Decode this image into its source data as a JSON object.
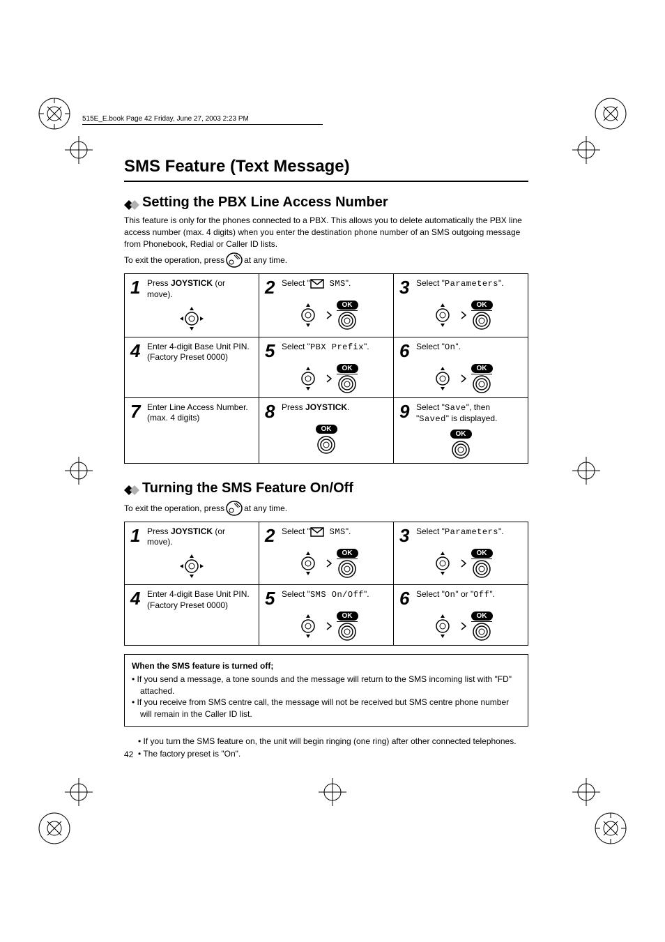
{
  "header": "515E_E.book  Page 42  Friday, June 27, 2003  2:23 PM",
  "page_number": "42",
  "main_title": "SMS Feature (Text Message)",
  "colors": {
    "diamond_dark": "#000000",
    "diamond_light": "#b0b0b0",
    "text": "#000000",
    "bg": "#ffffff"
  },
  "section1": {
    "title": "Setting the PBX Line Access Number",
    "intro": "This feature is only for the phones connected to a PBX. This allows you to delete automatically the PBX line access number (max. 4 digits) when you enter the destination phone number of an SMS outgoing message from Phonebook, Redial or Caller ID lists.",
    "exit_pre": "To exit the operation, press ",
    "exit_post": " at any time.",
    "steps": [
      {
        "n": "1",
        "text_a": "Press ",
        "bold": "JOYSTICK",
        "text_b": " (or move).",
        "g": "joy4"
      },
      {
        "n": "2",
        "text_a": "Select \"",
        "env": true,
        "mono": " SMS",
        "text_b": "\".",
        "g": "joyok"
      },
      {
        "n": "3",
        "text_a": "Select \"",
        "mono": "Parameters",
        "text_b": "\".",
        "g": "joyok"
      },
      {
        "n": "4",
        "text_a": "Enter 4-digit Base Unit PIN.",
        "sub": "(Factory Preset 0000)",
        "g": "none"
      },
      {
        "n": "5",
        "text_a": "Select \"",
        "mono": "PBX Prefix",
        "text_b": "\".",
        "g": "joyok"
      },
      {
        "n": "6",
        "text_a": "Select \"",
        "mono": "On",
        "text_b": "\".",
        "g": "joyok"
      },
      {
        "n": "7",
        "text_a": "Enter Line Access Number.",
        "sub": "(max. 4 digits)",
        "g": "none"
      },
      {
        "n": "8",
        "text_a": "Press ",
        "bold": "JOYSTICK",
        "text_b": ".",
        "g": "okcircle"
      },
      {
        "n": "9",
        "text_a": "Select \"",
        "mono": "Save",
        "text_b": "\", then \"",
        "mono2": "Saved",
        "text_c": "\" is displayed.",
        "g": "okcircle"
      }
    ]
  },
  "section2": {
    "title": "Turning the SMS Feature On/Off",
    "exit_pre": "To exit the operation, press ",
    "exit_post": " at any time.",
    "steps": [
      {
        "n": "1",
        "text_a": "Press ",
        "bold": "JOYSTICK",
        "text_b": " (or move).",
        "g": "joy4"
      },
      {
        "n": "2",
        "text_a": "Select \"",
        "env": true,
        "mono": " SMS",
        "text_b": "\".",
        "g": "joyok"
      },
      {
        "n": "3",
        "text_a": "Select \"",
        "mono": "Parameters",
        "text_b": "\".",
        "g": "joyok"
      },
      {
        "n": "4",
        "text_a": "Enter 4-digit Base Unit PIN.",
        "sub": "(Factory Preset 0000)",
        "g": "none"
      },
      {
        "n": "5",
        "text_a": "Select \"",
        "mono": "SMS On/Off",
        "text_b": "\".",
        "g": "joyok"
      },
      {
        "n": "6",
        "text_a": "Select \"",
        "mono": "On",
        "text_b": "\" or \"",
        "mono2": "Off",
        "text_c": "\".",
        "g": "joyok"
      }
    ],
    "note_title": "When the SMS feature is turned off;",
    "note_items": [
      "If you send a message, a tone sounds and the message will return to the SMS incoming list with \"FD\" attached.",
      "If you receive from SMS centre call, the message will not be received but SMS centre phone number will remain in the Caller ID list."
    ],
    "after_notes": [
      "If you turn the SMS feature on, the unit will begin ringing (one ring) after other connected telephones.",
      "The factory preset is \"On\"."
    ]
  }
}
